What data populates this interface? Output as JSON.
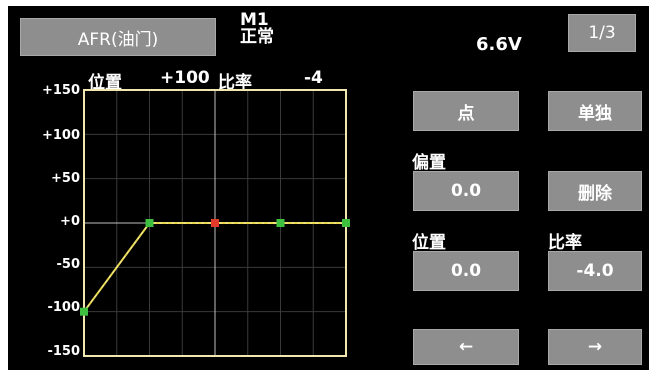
{
  "header": {
    "curve_button_label": "AFR(油门)",
    "model_line1": "M1",
    "model_line2": "正常",
    "voltage": "6.6V",
    "page_button_label": "1/3"
  },
  "graph_header": {
    "position_label": "位置",
    "position_value": "+100",
    "rate_label": "比率",
    "rate_value": "-4"
  },
  "y_axis_labels": [
    "+150",
    "+100",
    "+50",
    "+0",
    "-50",
    "-100",
    "-150"
  ],
  "right_panel": {
    "point_button_label": "点",
    "single_button_label": "单独",
    "offset_label": "偏置",
    "offset_value": "0.0",
    "delete_button_label": "删除",
    "position_label": "位置",
    "position_value": "0.0",
    "rate_label": "比率",
    "rate_value": "-4.0",
    "prev_button_label": "←",
    "next_button_label": "→"
  },
  "chart_data": {
    "type": "line",
    "x_range": [
      -100,
      100
    ],
    "ylim": [
      -150,
      150
    ],
    "points": [
      {
        "x": -100,
        "y": -100,
        "marker": "green"
      },
      {
        "x": -50,
        "y": 0,
        "marker": "green"
      },
      {
        "x": 0,
        "y": 0,
        "marker": "red"
      },
      {
        "x": 50,
        "y": 0,
        "marker": "green"
      },
      {
        "x": 100,
        "y": 0,
        "marker": "green"
      }
    ],
    "colors": {
      "line": "#e8d84a",
      "point": "#3fbf3f",
      "selected_point": "#e03a2a",
      "grid": "#3a3a3a",
      "axis": "#bfbfbf",
      "frame": "#f2e7b0"
    }
  }
}
